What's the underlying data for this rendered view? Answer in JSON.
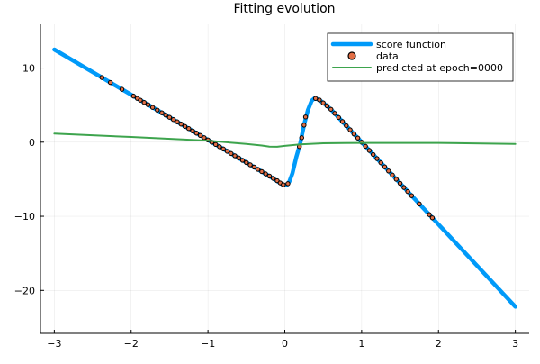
{
  "chart_data": {
    "type": "line",
    "title": "Fitting evolution",
    "xlabel": "",
    "ylabel": "",
    "xlim": [
      -3.18,
      3.18
    ],
    "ylim": [
      -25.8,
      15.9
    ],
    "xticks": [
      -3,
      -2,
      -1,
      0,
      1,
      2,
      3
    ],
    "xtick_labels": [
      "−3",
      "−2",
      "−1",
      "0",
      "1",
      "2",
      "3"
    ],
    "yticks": [
      10,
      0,
      -10,
      -20
    ],
    "ytick_labels": [
      "10",
      "0",
      "−10",
      "−20"
    ],
    "grid": true,
    "legend_position": "top-right",
    "series": [
      {
        "name": "score function",
        "kind": "line",
        "color": "#009af9",
        "x": [
          -3,
          -2.5,
          -2,
          -1.5,
          -1,
          -0.5,
          -0.2,
          -0.1,
          -0.05,
          0,
          0.03,
          0.06,
          0.1,
          0.15,
          0.2,
          0.25,
          0.3,
          0.35,
          0.39,
          0.45,
          0.5,
          0.6,
          1,
          2,
          3
        ],
        "y": [
          12.5,
          9.45,
          6.4,
          3.35,
          0.3,
          -2.75,
          -4.6,
          -5.25,
          -5.6,
          -5.8,
          -5.75,
          -5.3,
          -4.2,
          -2.0,
          -0.2,
          2.3,
          4.3,
          5.6,
          5.95,
          5.7,
          5.3,
          4.44,
          0,
          -11.1,
          -22.2
        ]
      },
      {
        "name": "data",
        "kind": "scatter",
        "color": "#e26f46",
        "x": [
          -2.38,
          -2.27,
          -2.12,
          -1.97,
          -1.92,
          -1.88,
          -1.83,
          -1.78,
          -1.72,
          -1.66,
          -1.6,
          -1.55,
          -1.5,
          -1.45,
          -1.4,
          -1.35,
          -1.3,
          -1.25,
          -1.2,
          -1.15,
          -1.1,
          -1.05,
          -1.0,
          -0.95,
          -0.9,
          -0.85,
          -0.8,
          -0.75,
          -0.7,
          -0.65,
          -0.6,
          -0.55,
          -0.5,
          -0.45,
          -0.4,
          -0.35,
          -0.3,
          -0.25,
          -0.2,
          -0.15,
          -0.1,
          -0.06,
          -0.02,
          0.04,
          0.19,
          0.22,
          0.25,
          0.27,
          0.4,
          0.45,
          0.5,
          0.55,
          0.6,
          0.65,
          0.7,
          0.75,
          0.8,
          0.85,
          0.9,
          0.95,
          1.0,
          1.05,
          1.1,
          1.15,
          1.2,
          1.25,
          1.3,
          1.35,
          1.4,
          1.45,
          1.5,
          1.55,
          1.6,
          1.65,
          1.75,
          1.88,
          1.92
        ],
        "y": [
          8.72,
          8.05,
          7.13,
          6.22,
          5.91,
          5.67,
          5.36,
          5.06,
          4.69,
          4.33,
          3.96,
          3.66,
          3.35,
          3.05,
          2.74,
          2.44,
          2.13,
          1.83,
          1.52,
          1.22,
          0.91,
          0.61,
          0.3,
          0.0,
          -0.31,
          -0.62,
          -0.92,
          -1.23,
          -1.53,
          -1.84,
          -2.14,
          -2.45,
          -2.75,
          -3.06,
          -3.36,
          -3.67,
          -3.97,
          -4.28,
          -4.58,
          -4.89,
          -5.2,
          -5.5,
          -5.75,
          -5.6,
          -0.6,
          0.6,
          2.3,
          3.4,
          5.9,
          5.7,
          5.3,
          4.9,
          4.44,
          3.89,
          3.33,
          2.78,
          2.22,
          1.67,
          1.11,
          0.56,
          0,
          -0.56,
          -1.11,
          -1.67,
          -2.22,
          -2.78,
          -3.33,
          -3.89,
          -4.44,
          -5.0,
          -5.55,
          -6.11,
          -6.66,
          -7.22,
          -8.33,
          -9.77,
          -10.21
        ]
      },
      {
        "name": "predicted at epoch=0000",
        "kind": "line",
        "color": "#3da44d",
        "x": [
          -3,
          -2,
          -1,
          -0.5,
          -0.3,
          -0.2,
          -0.1,
          0,
          0.2,
          0.5,
          1,
          2,
          3
        ],
        "y": [
          1.15,
          0.7,
          0.2,
          -0.25,
          -0.45,
          -0.6,
          -0.62,
          -0.5,
          -0.3,
          -0.15,
          -0.1,
          -0.1,
          -0.25
        ]
      }
    ]
  }
}
